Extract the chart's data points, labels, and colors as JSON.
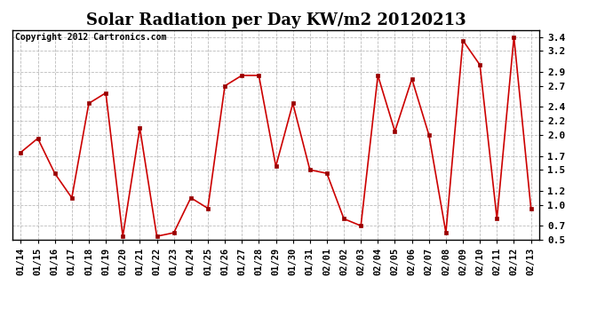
{
  "title": "Solar Radiation per Day KW/m2 20120213",
  "copyright_text": "Copyright 2012 Cartronics.com",
  "labels": [
    "01/14",
    "01/15",
    "01/16",
    "01/17",
    "01/18",
    "01/19",
    "01/20",
    "01/21",
    "01/22",
    "01/23",
    "01/24",
    "01/25",
    "01/26",
    "01/27",
    "01/28",
    "01/29",
    "01/30",
    "01/31",
    "02/01",
    "02/02",
    "02/03",
    "02/04",
    "02/05",
    "02/06",
    "02/07",
    "02/08",
    "02/09",
    "02/10",
    "02/11",
    "02/12",
    "02/13"
  ],
  "values": [
    1.75,
    1.95,
    1.45,
    1.1,
    2.45,
    2.6,
    0.55,
    2.1,
    0.55,
    0.6,
    1.1,
    0.95,
    2.7,
    2.85,
    2.85,
    1.55,
    2.45,
    1.5,
    1.45,
    0.8,
    0.7,
    2.85,
    2.05,
    2.8,
    2.0,
    0.6,
    3.35,
    3.0,
    0.8,
    3.4,
    0.95
  ],
  "line_color": "#cc0000",
  "marker_color": "#990000",
  "ylim": [
    0.5,
    3.5
  ],
  "yticks": [
    0.5,
    0.7,
    1.0,
    1.2,
    1.5,
    1.7,
    2.0,
    2.2,
    2.4,
    2.7,
    2.9,
    3.2,
    3.4
  ],
  "background_color": "#ffffff",
  "plot_bg_color": "#ffffff",
  "grid_color": "#aaaaaa",
  "title_fontsize": 13,
  "copyright_fontsize": 7,
  "tick_fontsize": 7.5,
  "ytick_fontsize": 8
}
